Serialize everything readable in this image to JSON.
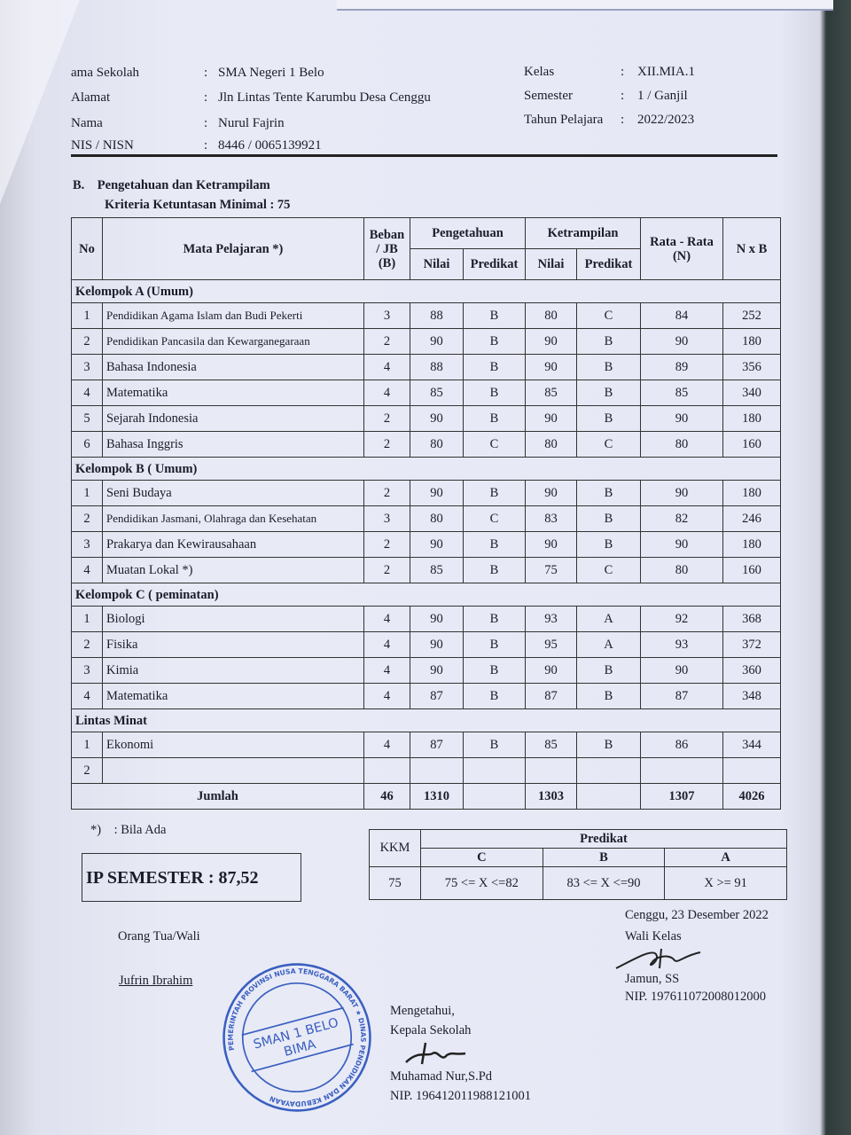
{
  "header": {
    "left": [
      {
        "label": "ama Sekolah",
        "value": "SMA Negeri 1 Belo"
      },
      {
        "label": "Alamat",
        "value": "Jln Lintas Tente Karumbu Desa Cenggu"
      },
      {
        "label": "Nama",
        "value": "Nurul Fajrin"
      },
      {
        "label": "NIS / NISN",
        "value": "8446 / 0065139921"
      }
    ],
    "right": [
      {
        "label": "Kelas",
        "value": "XII.MIA.1"
      },
      {
        "label": "Semester",
        "value": "1 / Ganjil"
      },
      {
        "label": "Tahun Pelajara",
        "value": "2022/2023"
      }
    ]
  },
  "section": {
    "title": "B.    Pengetahuan dan Ketrampilam",
    "kkm_line": "Kriteria Ketuntasan Minimal : 75"
  },
  "table": {
    "headers": {
      "no": "No",
      "subject": "Mata Pelajaran *)",
      "beban": "Beban / JB (B)",
      "pengetahuan": "Pengetahuan",
      "ketrampilan": "Ketrampilan",
      "nilai": "Nilai",
      "predikat": "Predikat",
      "rata": "Rata - Rata (N)",
      "nxb": "N x B"
    },
    "groups": [
      {
        "name": "Kelompok A (Umum)",
        "rows": [
          [
            "1",
            "Pendidikan Agama Islam dan Budi Pekerti",
            "3",
            "88",
            "B",
            "80",
            "C",
            "84",
            "252"
          ],
          [
            "2",
            "Pendidikan Pancasila dan Kewarganegaraan",
            "2",
            "90",
            "B",
            "90",
            "B",
            "90",
            "180"
          ],
          [
            "3",
            "Bahasa Indonesia",
            "4",
            "88",
            "B",
            "90",
            "B",
            "89",
            "356"
          ],
          [
            "4",
            "Matematika",
            "4",
            "85",
            "B",
            "85",
            "B",
            "85",
            "340"
          ],
          [
            "5",
            "Sejarah Indonesia",
            "2",
            "90",
            "B",
            "90",
            "B",
            "90",
            "180"
          ],
          [
            "6",
            "Bahasa Inggris",
            "2",
            "80",
            "C",
            "80",
            "C",
            "80",
            "160"
          ]
        ]
      },
      {
        "name": "Kelompok B ( Umum)",
        "rows": [
          [
            "1",
            "Seni Budaya",
            "2",
            "90",
            "B",
            "90",
            "B",
            "90",
            "180"
          ],
          [
            "2",
            "Pendidikan Jasmani, Olahraga dan Kesehatan",
            "3",
            "80",
            "C",
            "83",
            "B",
            "82",
            "246"
          ],
          [
            "3",
            "Prakarya dan Kewirausahaan",
            "2",
            "90",
            "B",
            "90",
            "B",
            "90",
            "180"
          ],
          [
            "4",
            "Muatan Lokal *)",
            "2",
            "85",
            "B",
            "75",
            "C",
            "80",
            "160"
          ]
        ]
      },
      {
        "name": "Kelompok C ( peminatan)",
        "rows": [
          [
            "1",
            "Biologi",
            "4",
            "90",
            "B",
            "93",
            "A",
            "92",
            "368"
          ],
          [
            "2",
            "Fisika",
            "4",
            "90",
            "B",
            "95",
            "A",
            "93",
            "372"
          ],
          [
            "3",
            "Kimia",
            "4",
            "90",
            "B",
            "90",
            "B",
            "90",
            "360"
          ],
          [
            "4",
            "Matematika",
            "4",
            "87",
            "B",
            "87",
            "B",
            "87",
            "348"
          ]
        ]
      },
      {
        "name": "Lintas Minat",
        "rows": [
          [
            "1",
            "Ekonomi",
            "4",
            "87",
            "B",
            "85",
            "B",
            "86",
            "344"
          ],
          [
            "2",
            "",
            "",
            "",
            "",
            "",
            "",
            "",
            ""
          ]
        ]
      }
    ],
    "total": {
      "label": "Jumlah",
      "beban": "46",
      "pengetahuan": "1310",
      "ketrampilan": "1303",
      "rata": "1307",
      "nxb": "4026"
    }
  },
  "note": "*)    : Bila Ada",
  "ip_semester": "IP SEMESTER : 87,52",
  "kkm_table": {
    "kkm_label": "KKM",
    "predikat_label": "Predikat",
    "grades": [
      "C",
      "B",
      "A"
    ],
    "kkm_value": "75",
    "ranges": [
      "75 <= X <=82",
      "83 <= X <=90",
      "X >= 91"
    ]
  },
  "signatures": {
    "place_date": "Cenggu, 23 Desember 2022",
    "wali_kelas_title": "Wali Kelas",
    "wali_kelas_name": "Jamun, SS",
    "wali_kelas_nip": "NIP. 197611072008012000",
    "parent_title": "Orang Tua/Wali",
    "parent_name": "Jufrin Ibrahim",
    "mengetahui": "Mengetahui,",
    "kepala_title": "Kepala Sekolah",
    "kepala_name": "Muhamad Nur,S.Pd",
    "kepala_nip": "NIP. 196412011988121001"
  },
  "stamp": {
    "outer_text": "PEMERINTAH PROVINSI NUSA TENGGARA BARAT ★ DINAS PENDIDIKAN DAN KEBUDAYAAN",
    "inner_line1": "SMAN 1 BELO",
    "inner_line2": "BIMA",
    "color": "#3a5fc0"
  }
}
